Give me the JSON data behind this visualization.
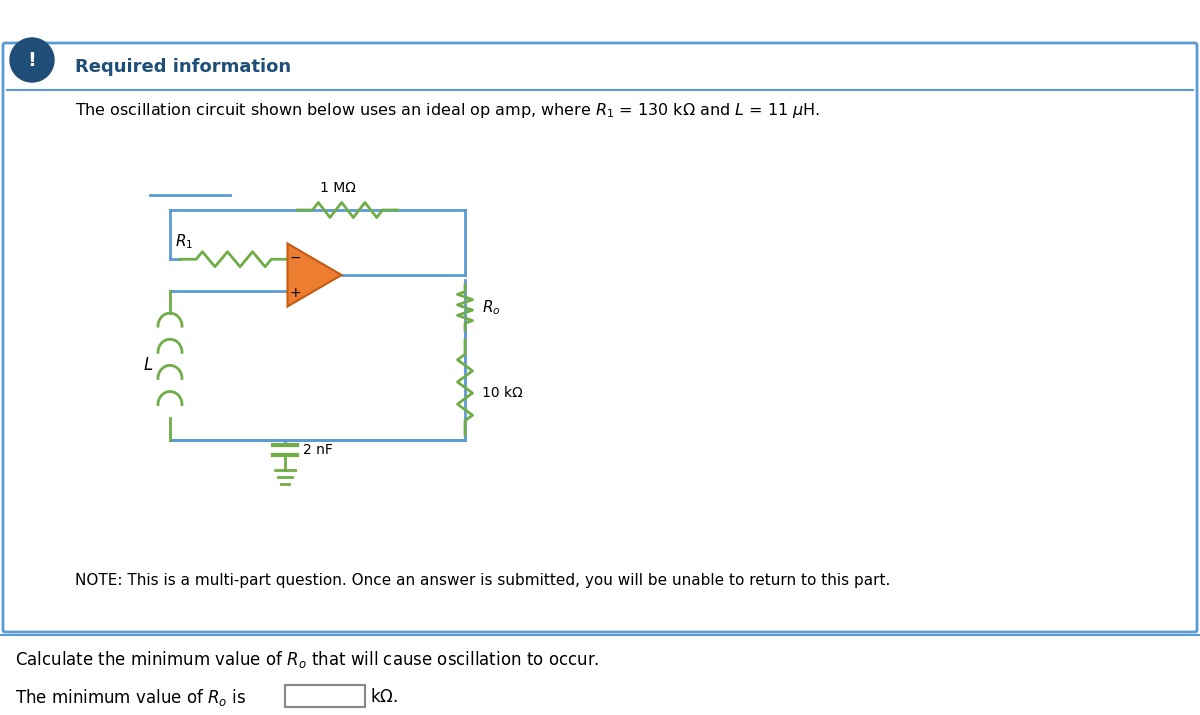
{
  "bg_color": "#ffffff",
  "border_color": "#5b9bd5",
  "icon_bg": "#1f4e79",
  "icon_text": "!",
  "title_text": "Required information",
  "title_color": "#1f4e79",
  "desc_text": "The oscillation circuit shown below uses an ideal op amp, where $R_1$ = 130 kΩ and $L$ = 11 $\\mu$ H.",
  "note_text": "NOTE: This is a multi-part question. Once an answer is submitted, you will be unable to return to this part.",
  "question_text": "Calculate the minimum value of $R_o$ that will cause oscillation to occur.",
  "answer_text": "The minimum value of $R_o$ is",
  "answer_unit": "kΩ.",
  "wire_color": "#5b9bd5",
  "resistor_color": "#70ad47",
  "inductor_color": "#70ad47",
  "capacitor_color": "#70ad47",
  "opamp_fill": "#ed7d31",
  "opamp_border": "#ed7d31",
  "label_color": "#000000",
  "feedback_resistor_color": "#70ad47",
  "bottom_resistor_color": "#70ad47"
}
